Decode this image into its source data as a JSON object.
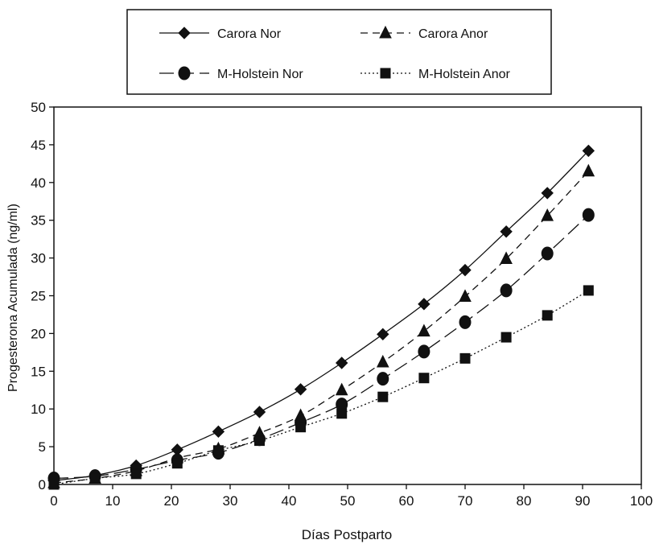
{
  "chart_data": {
    "type": "line",
    "title": "",
    "xlabel": "Días Postparto",
    "ylabel": "Progesterona Acumulada (ng/ml)",
    "xlim": [
      0,
      100
    ],
    "ylim": [
      0,
      50
    ],
    "xticks": [
      0,
      10,
      20,
      30,
      40,
      50,
      60,
      70,
      80,
      90,
      100
    ],
    "yticks": [
      0,
      5,
      10,
      15,
      20,
      25,
      30,
      35,
      40,
      45,
      50
    ],
    "grid": false,
    "legend_position": "top-center",
    "series": [
      {
        "name": "Carora Nor",
        "marker": "diamond",
        "line": "solid",
        "x": [
          0,
          7,
          14,
          21,
          28,
          35,
          42,
          49,
          56,
          63,
          70,
          77,
          84,
          91
        ],
        "y": [
          0.5,
          1.2,
          2.5,
          4.6,
          7.0,
          9.6,
          12.6,
          16.1,
          19.9,
          23.9,
          28.4,
          33.5,
          38.6,
          44.2
        ]
      },
      {
        "name": "Carora Anor",
        "marker": "triangle",
        "line": "dashed",
        "x": [
          0,
          7,
          14,
          21,
          28,
          35,
          42,
          49,
          56,
          63,
          70,
          77,
          84,
          91
        ],
        "y": [
          0.2,
          0.8,
          1.8,
          3.5,
          4.7,
          6.8,
          9.1,
          12.5,
          16.2,
          20.3,
          24.9,
          29.9,
          35.6,
          41.5
        ]
      },
      {
        "name": "M-Holstein Nor",
        "marker": "circle",
        "line": "longdash",
        "x": [
          0,
          7,
          14,
          21,
          28,
          35,
          42,
          49,
          56,
          63,
          70,
          77,
          84,
          91
        ],
        "y": [
          0.8,
          1.1,
          2.0,
          3.2,
          4.2,
          6.0,
          8.2,
          10.6,
          14.0,
          17.6,
          21.5,
          25.7,
          30.6,
          35.7
        ]
      },
      {
        "name": "M-Holstein Anor",
        "marker": "square",
        "line": "dotted",
        "x": [
          0,
          7,
          14,
          21,
          28,
          35,
          42,
          49,
          56,
          63,
          70,
          77,
          84,
          91
        ],
        "y": [
          0.0,
          0.8,
          1.4,
          2.8,
          4.5,
          5.8,
          7.6,
          9.4,
          11.6,
          14.1,
          16.7,
          19.5,
          22.4,
          25.7
        ]
      }
    ]
  }
}
